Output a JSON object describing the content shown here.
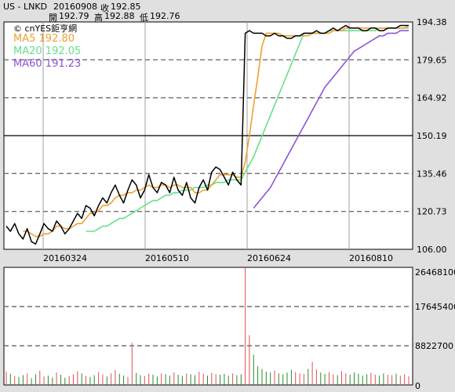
{
  "header": {
    "symbol": "US - LNKD",
    "date": "20160908",
    "close_label": "收",
    "close": "192.85",
    "open_label": "開",
    "open": "192.79",
    "high_label": "高",
    "high": "192.88",
    "low_label": "低",
    "low": "192.76"
  },
  "copyright": "© cnYES鉅亨網",
  "legend": [
    {
      "label": "MA5",
      "value": "192.80",
      "color": "#f0a030"
    },
    {
      "label": "MA20",
      "value": "192.05",
      "color": "#66e08a"
    },
    {
      "label": "MA60",
      "value": "191.23",
      "color": "#8a55d8"
    }
  ],
  "colors": {
    "price": "#000000",
    "ma5": "#f0a030",
    "ma20": "#66e08a",
    "ma60": "#8a55d8",
    "vol_up": "#e05050",
    "vol_down": "#2a8a2a",
    "dash": "#707070"
  },
  "chart_data": [
    {
      "type": "line",
      "panel": "price",
      "y_ticks": [
        "194.38",
        "179.65",
        "164.92",
        "150.19",
        "135.46",
        "120.73",
        "106.00"
      ],
      "x_ticks": [
        "20160324",
        "20160510",
        "20160624",
        "20160810"
      ],
      "ylim": [
        106.0,
        194.38
      ],
      "reference_line": 150.19,
      "series": [
        {
          "name": "price",
          "values": [
            115,
            113,
            116,
            112,
            110,
            114,
            109,
            108,
            112,
            116,
            114,
            113,
            117,
            115,
            112,
            114,
            117,
            120,
            118,
            123,
            122,
            119,
            123,
            126,
            124,
            128,
            131,
            127,
            124,
            129,
            133,
            131,
            126,
            129,
            135,
            130,
            128,
            132,
            131,
            128,
            134,
            129,
            127,
            132,
            126,
            124,
            130,
            133,
            129,
            136,
            138,
            137,
            134,
            131,
            136,
            133,
            131,
            190,
            191,
            190,
            190,
            190,
            189,
            189,
            190,
            189,
            189,
            188,
            188,
            189,
            189,
            190,
            190,
            190,
            191,
            190,
            190,
            191,
            192,
            191,
            192,
            193,
            192,
            192,
            192,
            191,
            191,
            192,
            192,
            191,
            191,
            192,
            192,
            192,
            193,
            193,
            193
          ]
        },
        {
          "name": "MA5",
          "values": [
            null,
            null,
            null,
            null,
            113,
            113,
            112,
            111,
            111,
            112,
            112,
            113,
            115,
            115,
            114,
            114,
            115,
            116,
            116,
            118,
            120,
            120,
            121,
            123,
            123,
            124,
            126,
            127,
            127,
            128,
            128,
            129,
            129,
            130,
            131,
            130,
            130,
            131,
            131,
            130,
            131,
            131,
            130,
            130,
            130,
            128,
            128,
            129,
            129,
            131,
            133,
            135,
            135,
            135,
            135,
            134,
            134,
            140,
            150,
            162,
            173,
            185,
            190,
            190,
            190,
            190,
            189,
            189,
            189,
            189,
            189,
            189,
            189,
            190,
            190,
            190,
            190,
            190,
            191,
            191,
            191,
            192,
            192,
            192,
            192,
            192,
            192,
            192,
            192,
            192,
            192,
            192,
            192,
            192,
            192,
            192,
            193
          ]
        },
        {
          "name": "MA20",
          "values": [
            null,
            null,
            null,
            null,
            null,
            null,
            null,
            null,
            null,
            null,
            null,
            null,
            null,
            null,
            null,
            null,
            null,
            null,
            null,
            113,
            113,
            113,
            114,
            115,
            115,
            116,
            117,
            118,
            118,
            119,
            120,
            121,
            122,
            123,
            124,
            125,
            125,
            126,
            127,
            127,
            128,
            128,
            129,
            129,
            129,
            130,
            130,
            130,
            131,
            131,
            132,
            132,
            132,
            133,
            133,
            133,
            133,
            136,
            139,
            142,
            146,
            150,
            154,
            158,
            162,
            166,
            170,
            174,
            178,
            182,
            186,
            190,
            190,
            190,
            190,
            190,
            190,
            191,
            191,
            191,
            191,
            191,
            191,
            191,
            191,
            191,
            191,
            191,
            191,
            192,
            192,
            192,
            192,
            192,
            192,
            192,
            192
          ]
        },
        {
          "name": "MA60",
          "values": [
            null,
            null,
            null,
            null,
            null,
            null,
            null,
            null,
            null,
            null,
            null,
            null,
            null,
            null,
            null,
            null,
            null,
            null,
            null,
            null,
            null,
            null,
            null,
            null,
            null,
            null,
            null,
            null,
            null,
            null,
            null,
            null,
            null,
            null,
            null,
            null,
            null,
            null,
            null,
            null,
            null,
            null,
            null,
            null,
            null,
            null,
            null,
            null,
            null,
            null,
            null,
            null,
            null,
            null,
            null,
            null,
            null,
            null,
            null,
            122,
            124,
            126,
            128,
            130,
            133,
            136,
            139,
            142,
            145,
            148,
            151,
            154,
            157,
            160,
            163,
            166,
            169,
            171,
            173,
            175,
            177,
            179,
            181,
            183,
            184,
            185,
            186,
            187,
            188,
            189,
            189,
            190,
            190,
            190,
            191,
            191,
            191
          ]
        }
      ]
    },
    {
      "type": "bar",
      "panel": "volume",
      "y_ticks": [
        "26468100",
        "17645400",
        "8822700",
        "0"
      ],
      "ylim": [
        0,
        26468100
      ],
      "values": [
        3000000,
        2500000,
        2000000,
        1800000,
        2200000,
        2600000,
        1500000,
        2400000,
        3200000,
        1900000,
        2100000,
        1700000,
        2800000,
        2300000,
        1600000,
        2000000,
        2400000,
        3100000,
        2600000,
        2000000,
        1800000,
        2200000,
        2900000,
        2400000,
        1900000,
        2600000,
        3300000,
        2500000,
        2100000,
        1800000,
        9500000,
        2700000,
        2200000,
        2000000,
        2500000,
        2300000,
        1900000,
        2600000,
        2400000,
        2100000,
        2800000,
        2300000,
        2000000,
        2600000,
        2400000,
        2200000,
        3000000,
        2500000,
        2100000,
        2700000,
        2400000,
        2300000,
        2500000,
        2100000,
        2600000,
        2200000,
        2400000,
        26468100,
        11200000,
        6800000,
        4200000,
        3600000,
        3000000,
        2800000,
        3200000,
        2600000,
        2400000,
        2800000,
        3400000,
        2900000,
        2600000,
        2500000,
        3600000,
        5200000,
        3500000,
        2800000,
        2500000,
        2900000,
        2400000,
        2200000,
        3100000,
        2600000,
        2300000,
        2800000,
        2500000,
        2100000,
        2400000,
        2700000,
        2300000,
        2100000,
        2600000,
        2300000,
        2200000,
        2500000,
        2100000,
        2400000,
        2000000
      ],
      "up": [
        1,
        0,
        1,
        0,
        0,
        1,
        0,
        0,
        1,
        1,
        0,
        0,
        1,
        0,
        0,
        1,
        1,
        1,
        0,
        1,
        0,
        0,
        1,
        1,
        0,
        1,
        1,
        0,
        0,
        1,
        1,
        0,
        0,
        1,
        1,
        0,
        0,
        1,
        0,
        0,
        1,
        0,
        0,
        1,
        0,
        0,
        1,
        1,
        0,
        1,
        1,
        0,
        0,
        0,
        1,
        0,
        0,
        1,
        1,
        0,
        0,
        0,
        0,
        0,
        1,
        0,
        0,
        0,
        0,
        1,
        1,
        1,
        0,
        1,
        1,
        0,
        0,
        1,
        1,
        0,
        1,
        1,
        0,
        0,
        0,
        0,
        0,
        1,
        1,
        0,
        0,
        1,
        1,
        0,
        1,
        1,
        1
      ]
    }
  ]
}
